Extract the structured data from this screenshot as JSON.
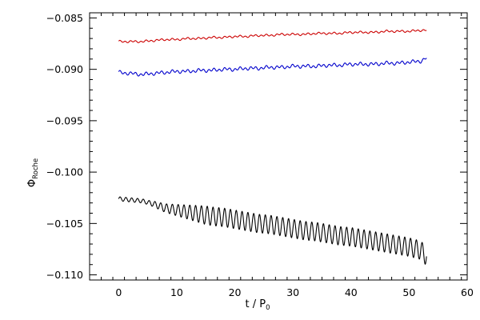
{
  "chart_data": {
    "type": "line",
    "title": "",
    "xlabel": {
      "main": "t / P",
      "sub": "0"
    },
    "ylabel": {
      "main": "Φ",
      "sub": "Roche"
    },
    "xlim": [
      -5,
      60
    ],
    "ylim": [
      -0.1105,
      -0.0845
    ],
    "xticks": [
      {
        "value": 0,
        "label": "0"
      },
      {
        "value": 10,
        "label": "10"
      },
      {
        "value": 20,
        "label": "20"
      },
      {
        "value": 30,
        "label": "30"
      },
      {
        "value": 40,
        "label": "40"
      },
      {
        "value": 50,
        "label": "50"
      },
      {
        "value": 60,
        "label": "60"
      }
    ],
    "yticks": [
      {
        "value": -0.085,
        "label": "−0.085"
      },
      {
        "value": -0.09,
        "label": "−0.090"
      },
      {
        "value": -0.095,
        "label": "−0.095"
      },
      {
        "value": -0.1,
        "label": "−0.100"
      },
      {
        "value": -0.105,
        "label": "−0.105"
      },
      {
        "value": -0.11,
        "label": "−0.110"
      }
    ],
    "grid": false,
    "legend": "none",
    "series": [
      {
        "color": "#cc0000",
        "x": [
          0,
          2,
          4,
          6,
          8,
          10,
          12,
          14,
          16,
          18,
          20,
          22,
          24,
          26,
          28,
          30,
          32,
          34,
          36,
          38,
          40,
          42,
          44,
          46,
          48,
          50,
          52,
          53
        ],
        "y": [
          -0.0873,
          -0.0873,
          -0.0873,
          -0.0872,
          -0.0871,
          -0.0871,
          -0.087,
          -0.087,
          -0.0869,
          -0.0869,
          -0.0868,
          -0.0868,
          -0.0867,
          -0.0867,
          -0.0866,
          -0.0866,
          -0.0866,
          -0.0865,
          -0.0865,
          -0.0865,
          -0.0864,
          -0.0864,
          -0.0864,
          -0.0863,
          -0.0863,
          -0.0863,
          -0.0862,
          -0.0862
        ],
        "wiggle_amplitude": 0.00012
      },
      {
        "color": "#0000cc",
        "x": [
          0,
          2,
          4,
          6,
          8,
          10,
          12,
          14,
          16,
          18,
          20,
          22,
          24,
          26,
          28,
          30,
          32,
          34,
          36,
          38,
          40,
          42,
          44,
          46,
          48,
          50,
          52,
          53
        ],
        "y": [
          -0.0903,
          -0.0904,
          -0.0905,
          -0.0904,
          -0.0903,
          -0.0902,
          -0.0902,
          -0.0901,
          -0.0901,
          -0.09,
          -0.09,
          -0.0899,
          -0.0899,
          -0.0898,
          -0.0898,
          -0.0897,
          -0.0897,
          -0.0897,
          -0.0896,
          -0.0896,
          -0.0895,
          -0.0895,
          -0.0895,
          -0.0894,
          -0.0894,
          -0.0893,
          -0.0892,
          -0.0889
        ],
        "wiggle_amplitude": 0.0002
      },
      {
        "color": "#000000",
        "x": [
          0,
          2,
          4,
          6,
          8,
          10,
          12,
          14,
          16,
          18,
          20,
          22,
          24,
          26,
          28,
          30,
          32,
          34,
          36,
          38,
          40,
          42,
          44,
          46,
          48,
          50,
          52,
          53
        ],
        "y": [
          -0.1026,
          -0.1027,
          -0.1028,
          -0.1031,
          -0.1035,
          -0.1037,
          -0.1039,
          -0.1041,
          -0.1043,
          -0.1044,
          -0.1046,
          -0.1048,
          -0.105,
          -0.1051,
          -0.1053,
          -0.1055,
          -0.1057,
          -0.1058,
          -0.106,
          -0.1062,
          -0.1063,
          -0.1065,
          -0.1067,
          -0.1069,
          -0.1071,
          -0.1073,
          -0.1076,
          -0.1082
        ],
        "oscillation_amplitude": [
          0.0002,
          0.0009
        ],
        "oscillation_period": 1.0
      }
    ]
  }
}
